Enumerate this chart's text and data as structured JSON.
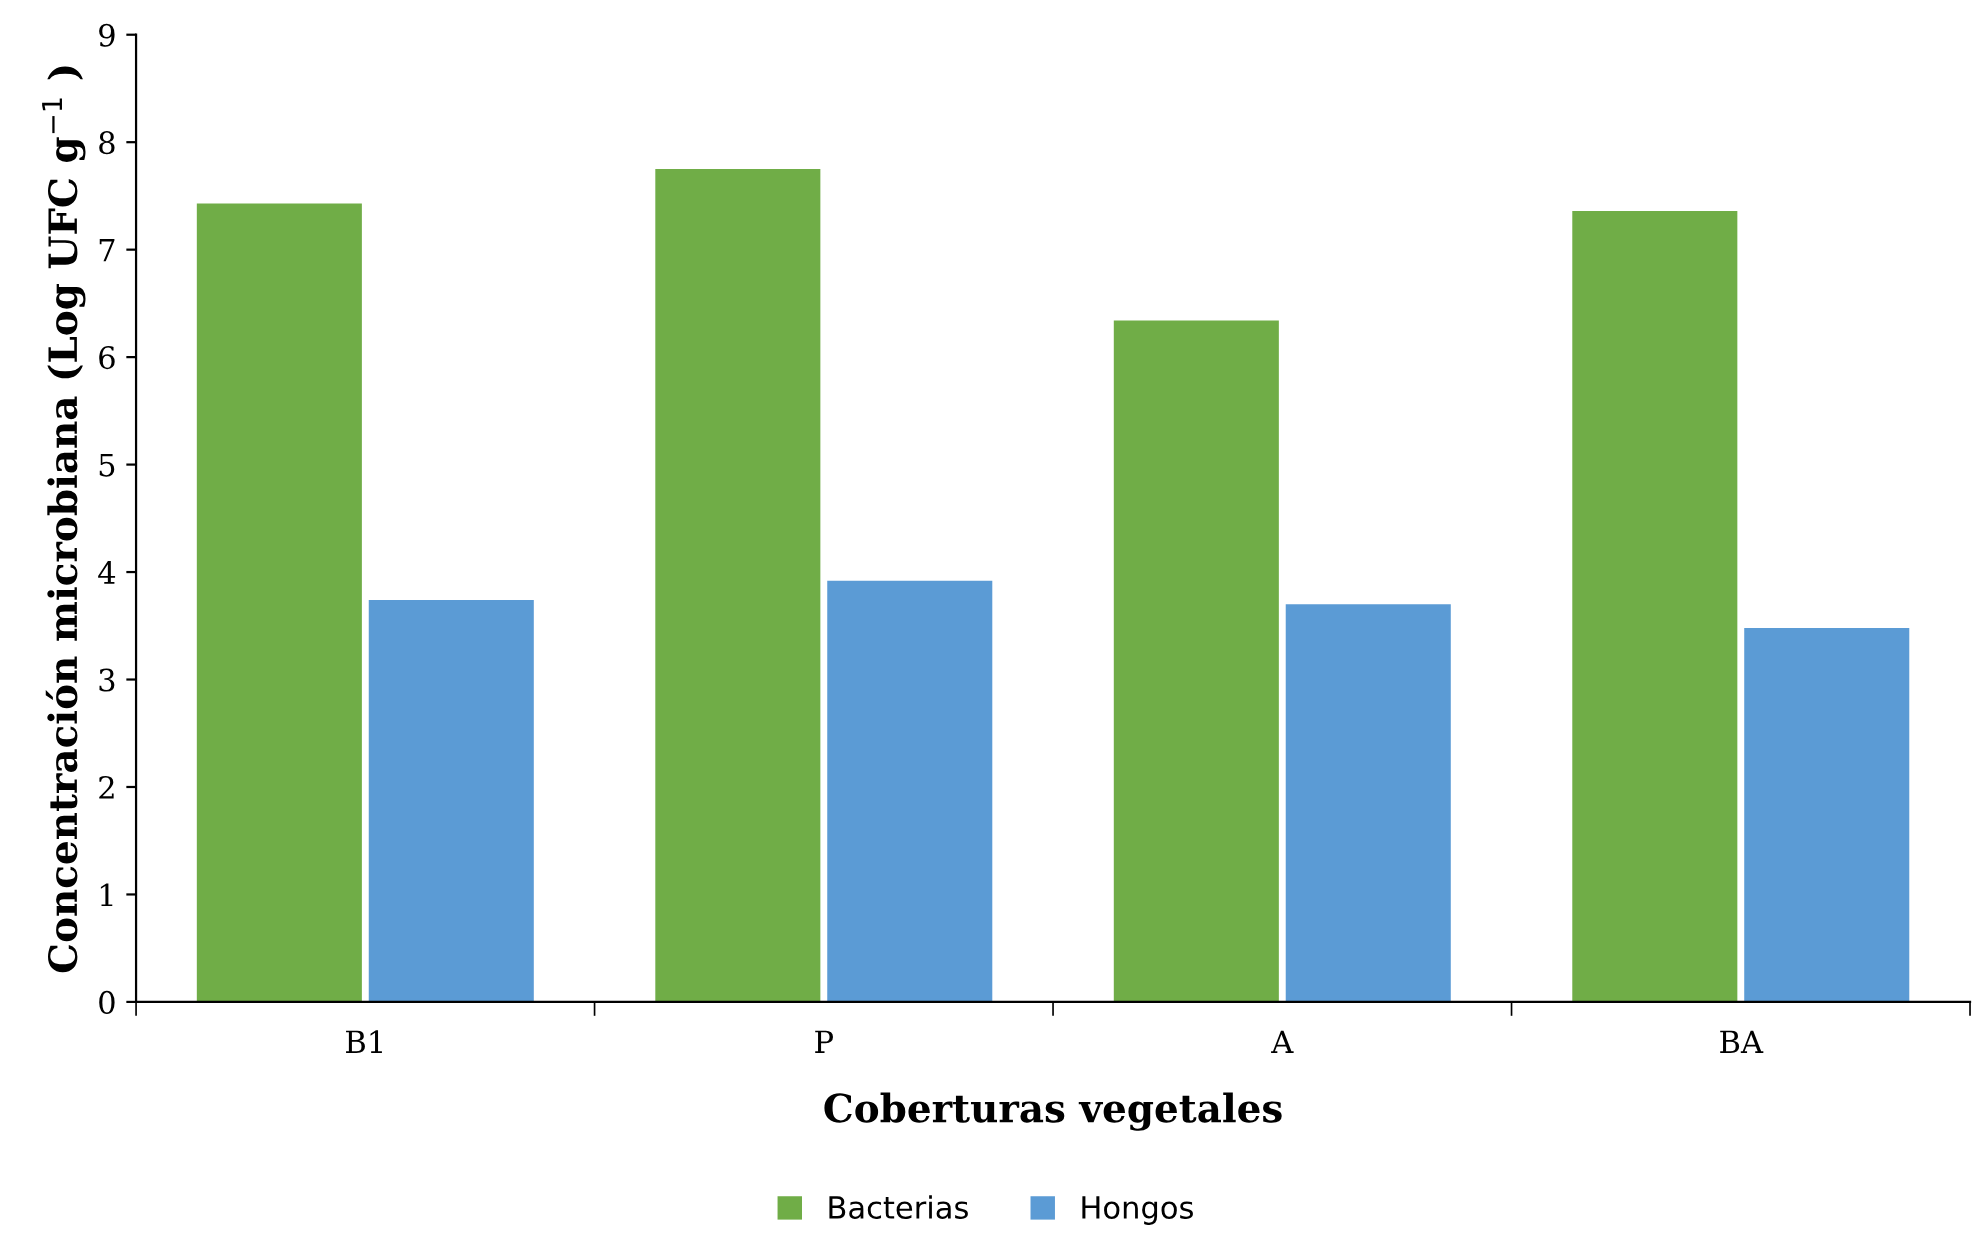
{
  "chart_data": {
    "type": "bar",
    "xlabel": "Coberturas vegetales",
    "ylabel": "Concentración microbiana (Log UFC g$^{−1}$ )",
    "categories": [
      "B1",
      "P",
      "A",
      "BA"
    ],
    "series": [
      {
        "name": "Bacterias",
        "color": "#70ad47",
        "values": [
          7.43,
          7.75,
          6.34,
          7.36
        ]
      },
      {
        "name": "Hongos",
        "color": "#5b9bd5",
        "values": [
          3.74,
          3.92,
          3.7,
          3.48
        ]
      }
    ],
    "ylim": [
      0,
      9
    ],
    "yticks": [
      0,
      1,
      2,
      3,
      4,
      5,
      6,
      7,
      8,
      9
    ],
    "grid": false,
    "legend": "bottom"
  }
}
